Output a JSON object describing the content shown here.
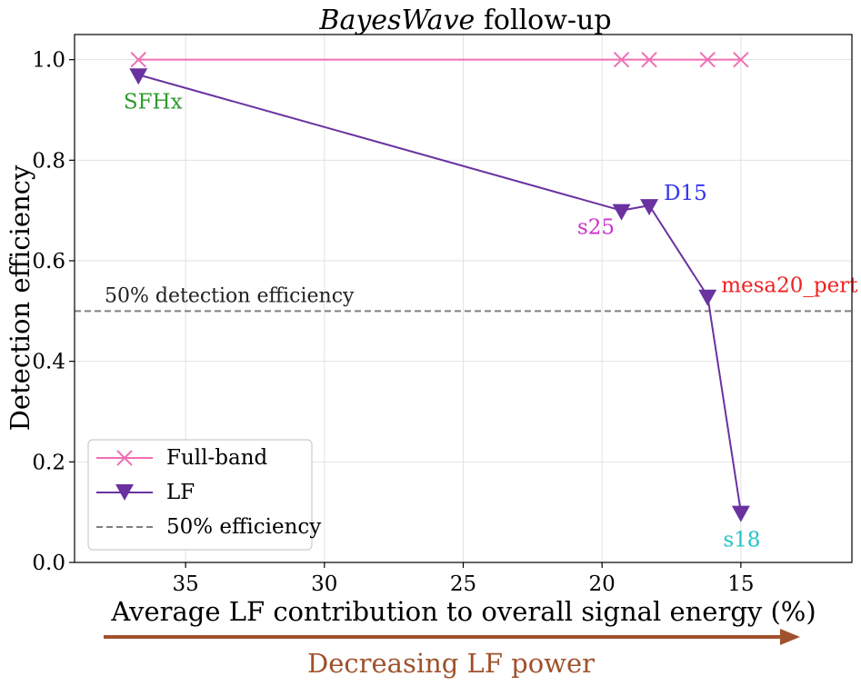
{
  "chart_data": {
    "type": "line",
    "title_italic": "BayesWave",
    "title_rest": " follow-up",
    "xlabel": "Average LF contribution to overall signal energy (%)",
    "ylabel": "Detection efficiency",
    "xlim": [
      39.0,
      11.0
    ],
    "ylim": [
      0.0,
      1.05
    ],
    "xticks": [
      35,
      30,
      25,
      20,
      15
    ],
    "xtick_labels": [
      "35",
      "30",
      "25",
      "20",
      "15"
    ],
    "yticks": [
      0.0,
      0.2,
      0.4,
      0.6,
      0.8,
      1.0
    ],
    "ytick_labels": [
      "0.0",
      "0.2",
      "0.4",
      "0.6",
      "0.8",
      "1.0"
    ],
    "grid": true,
    "legend_position": "lower-left",
    "series": [
      {
        "name": "Full-band",
        "marker": "x",
        "color": "#ef6fb4",
        "x": [
          36.7,
          19.3,
          18.3,
          16.2,
          15.0
        ],
        "y": [
          1.0,
          1.0,
          1.0,
          1.0,
          1.0
        ]
      },
      {
        "name": "LF",
        "marker": "triangle-down",
        "color": "#6a32a0",
        "x": [
          36.7,
          19.3,
          18.3,
          16.2,
          15.0
        ],
        "y": [
          0.97,
          0.7,
          0.71,
          0.53,
          0.1
        ]
      }
    ],
    "threshold": {
      "name": "50% efficiency",
      "value": 0.5,
      "color": "#808080",
      "label": "50% detection efficiency"
    },
    "point_labels": [
      {
        "text": "SFHx",
        "color": "#2e9a2e",
        "x": 36.7,
        "y": 0.97
      },
      {
        "text": "s25",
        "color": "#cc33cc",
        "x": 19.3,
        "y": 0.7
      },
      {
        "text": "D15",
        "color": "#3333ee",
        "x": 18.3,
        "y": 0.71
      },
      {
        "text": "mesa20_pert",
        "color": "#ee2222",
        "x": 16.2,
        "y": 0.53
      },
      {
        "text": "s18",
        "color": "#22c4c8",
        "x": 15.0,
        "y": 0.1
      }
    ],
    "arrow": {
      "label": "Decreasing LF power",
      "color": "#a0522d"
    }
  }
}
